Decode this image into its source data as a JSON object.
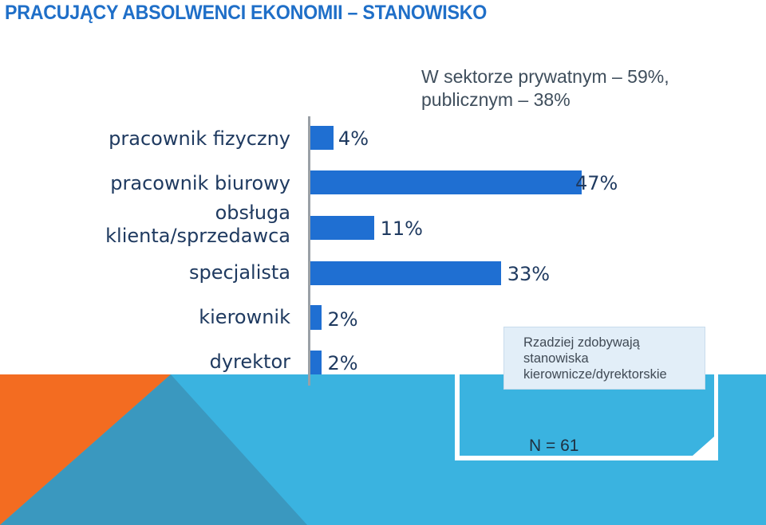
{
  "title": "PRACUJĄCY ABSOLWENCI EKONOMII – STANOWISKO",
  "note": {
    "line1": "W sektorze prywatnym – 59%,",
    "line2": "publicznym – 38%"
  },
  "callout": {
    "line1": "Rzadziej zdobywają",
    "line2": "stanowiska",
    "line3": "kierownicze/dyrektorskie"
  },
  "sample_size": "N = 61",
  "colors": {
    "bar": "#1f6fd2",
    "title": "#1f6fc8",
    "background_blue": "#3ab3e0",
    "background_teal": "#3ea1c8",
    "background_orange": "#f36c21"
  },
  "chart_data": {
    "type": "bar",
    "orientation": "horizontal",
    "categories": [
      "pracownik fizyczny",
      "pracownik biurowy",
      "obsługa klienta/sprzedawca",
      "specjalista",
      "kierownik",
      "dyrektor"
    ],
    "category_lines": [
      [
        "pracownik fizyczny"
      ],
      [
        "pracownik biurowy"
      ],
      [
        "obsługa",
        "klienta/sprzedawca"
      ],
      [
        "specjalista"
      ],
      [
        "kierownik"
      ],
      [
        "dyrektor"
      ]
    ],
    "values": [
      4,
      47,
      11,
      33,
      2,
      2
    ],
    "value_labels": [
      "4%",
      "47%",
      "11%",
      "33%",
      "2%",
      "2%"
    ],
    "unit": "%",
    "xlim": [
      0,
      47
    ],
    "grid": false,
    "legend": "none"
  }
}
